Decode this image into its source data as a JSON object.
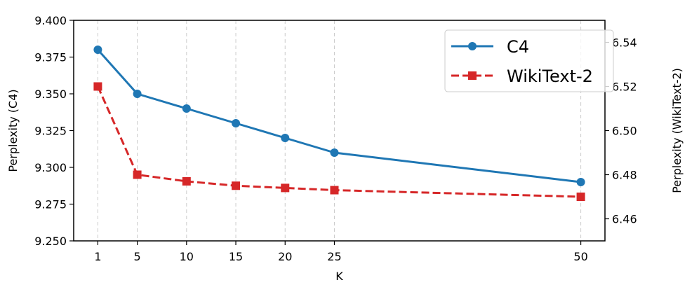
{
  "chart_data": {
    "type": "line",
    "x": [
      1,
      5,
      10,
      15,
      20,
      25,
      50
    ],
    "xlabel": "K",
    "x_ticks": [
      "1",
      "5",
      "10",
      "15",
      "20",
      "25",
      "50"
    ],
    "grid": "vertical-dashed",
    "legend_position": "top-right",
    "left_axis": {
      "label": "Perplexity (C4)",
      "ylim": [
        9.25,
        9.4
      ],
      "ticks": [
        "9.250",
        "9.275",
        "9.300",
        "9.325",
        "9.350",
        "9.375",
        "9.400"
      ]
    },
    "right_axis": {
      "label": "Perplexity (WikiText-2)",
      "ylim": [
        6.45,
        6.55
      ],
      "ticks": [
        "6.46",
        "6.48",
        "6.50",
        "6.52",
        "6.54"
      ]
    },
    "series": [
      {
        "name": "C4",
        "axis": "left",
        "values": [
          9.38,
          9.35,
          9.34,
          9.33,
          9.32,
          9.31,
          9.29
        ],
        "color": "#1f77b4",
        "marker": "circle",
        "linestyle": "solid"
      },
      {
        "name": "WikiText-2",
        "axis": "right",
        "values": [
          6.52,
          6.48,
          6.477,
          6.475,
          6.474,
          6.473,
          6.47
        ],
        "color": "#d62728",
        "marker": "square",
        "linestyle": "dashed"
      }
    ]
  }
}
